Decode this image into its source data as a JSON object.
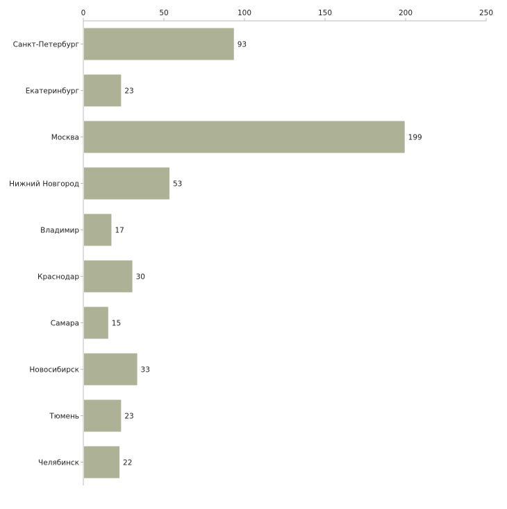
{
  "chart_data": {
    "type": "bar",
    "orientation": "horizontal",
    "title": "",
    "xlabel": "",
    "ylabel": "",
    "xlim": [
      0,
      250
    ],
    "x_ticks": [
      0,
      50,
      100,
      150,
      200,
      250
    ],
    "x_tick_labels": [
      "0",
      "50",
      "100",
      "150",
      "200",
      "250"
    ],
    "x_axis_position": "top",
    "grid": false,
    "legend": "none",
    "categories": [
      "Санкт-Петербург",
      "Екатеринбург",
      "Москва",
      "Нижний Новгород",
      "Владимир",
      "Краснодар",
      "Самара",
      "Новосибирск",
      "Тюмень",
      "Челябинск"
    ],
    "values": [
      93,
      23,
      199,
      53,
      17,
      30,
      15,
      33,
      23,
      22
    ],
    "value_labels": [
      "93",
      "23",
      "199",
      "53",
      "17",
      "30",
      "15",
      "33",
      "23",
      "22"
    ],
    "bar_color": "#adb196",
    "axis_color": "#bbbbbb"
  }
}
